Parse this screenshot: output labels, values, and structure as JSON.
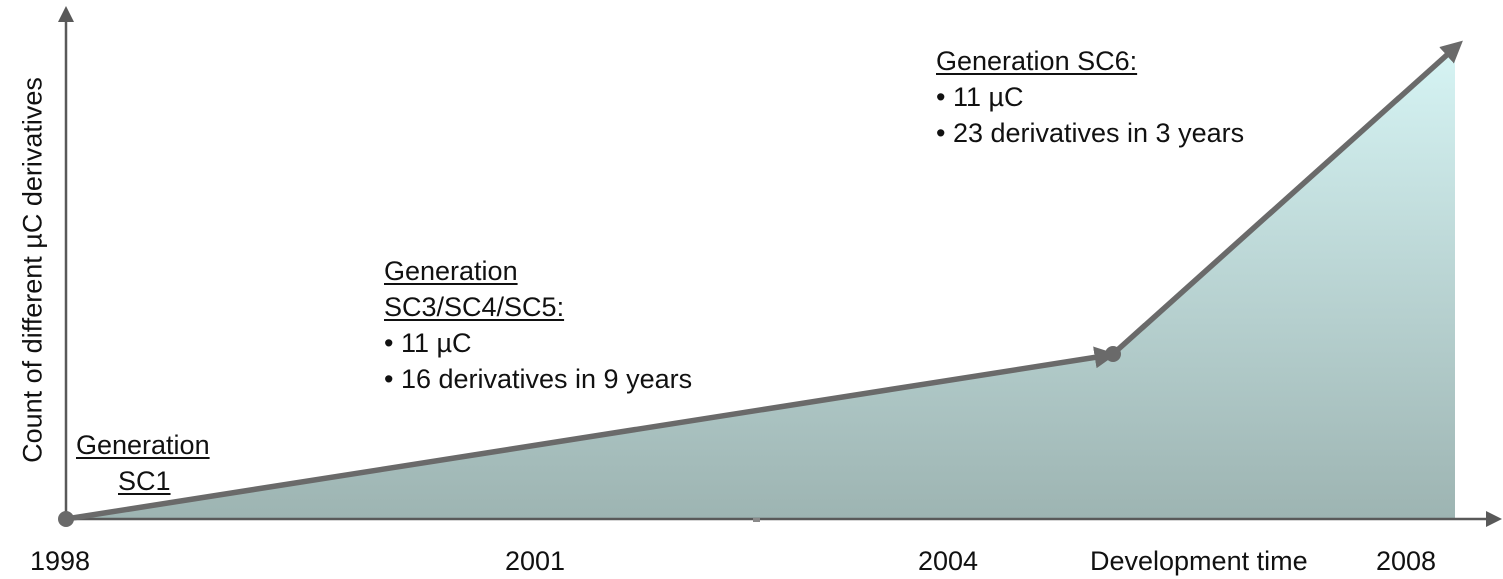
{
  "diagram": {
    "y_axis_label": "Count of different  µC derivatives",
    "x_axis_label": "Development time",
    "x_ticks": [
      "1998",
      "2001",
      "2004",
      "2008"
    ],
    "generations": [
      {
        "title_lines": [
          "Generation",
          " SC1"
        ],
        "bullets": []
      },
      {
        "title_lines": [
          "Generation",
          "SC3/SC4/SC5:"
        ],
        "bullets": [
          "• 11 µC",
          "• 16 derivatives in 9 years"
        ]
      },
      {
        "title_lines": [
          "Generation SC6:"
        ],
        "bullets": [
          "• 11 µC",
          "• 23 derivatives in 3 years"
        ]
      }
    ],
    "colors": {
      "axis": "#595959",
      "line": "#6a6a6a",
      "fill_top": "#d6f4f4",
      "fill_bottom": "#9db4b2"
    }
  }
}
